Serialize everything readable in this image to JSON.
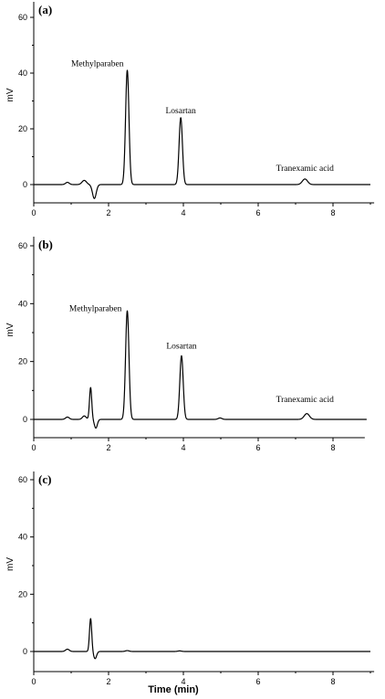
{
  "chart_data": [
    {
      "type": "line",
      "panel_label": "(a)",
      "ylabel": "mV",
      "xlabel": "",
      "xlim": [
        0,
        9
      ],
      "ylim": [
        -5,
        62
      ],
      "x_ticks": [
        "0",
        "2",
        "4",
        "6",
        "8"
      ],
      "y_ticks": [
        "0",
        "20",
        "40",
        "60"
      ],
      "baseline_features": [
        {
          "x": 0.9,
          "y": 0.8,
          "w": 0.05
        },
        {
          "x": 1.35,
          "y": 1.5,
          "w": 0.06
        },
        {
          "x": 1.62,
          "y": -5.0,
          "w": 0.05
        }
      ],
      "peaks": [
        {
          "name": "Methylparaben",
          "rt": 2.5,
          "height": 41,
          "width": 0.045
        },
        {
          "name": "Losartan",
          "rt": 3.93,
          "height": 24,
          "width": 0.045
        },
        {
          "name": "Tranexamic acid",
          "rt": 7.25,
          "height": 2,
          "width": 0.07
        }
      ],
      "annotations": [
        {
          "text": "Methylparaben",
          "x": 1.7,
          "y": 42.5
        },
        {
          "text": "Losartan",
          "x": 3.93,
          "y": 25.5
        },
        {
          "text": "Tranexamic acid",
          "x": 7.25,
          "y": 5
        }
      ]
    },
    {
      "type": "line",
      "panel_label": "(b)",
      "ylabel": "mV",
      "xlabel": "",
      "xlim": [
        0,
        8.9
      ],
      "ylim": [
        -7,
        62
      ],
      "x_ticks": [
        "0",
        "2",
        "4",
        "6",
        "8"
      ],
      "y_ticks": [
        "0",
        "20",
        "40",
        "60"
      ],
      "baseline_features": [
        {
          "x": 0.9,
          "y": 0.8,
          "w": 0.05
        },
        {
          "x": 1.35,
          "y": 1.2,
          "w": 0.05
        },
        {
          "x": 1.52,
          "y": 11,
          "w": 0.03
        },
        {
          "x": 1.66,
          "y": -3,
          "w": 0.04
        }
      ],
      "peaks": [
        {
          "name": "Methylparaben",
          "rt": 2.5,
          "height": 37.5,
          "width": 0.045
        },
        {
          "name": "Losartan",
          "rt": 3.95,
          "height": 22,
          "width": 0.045
        },
        {
          "name": "",
          "rt": 4.98,
          "height": 0.5,
          "width": 0.05
        },
        {
          "name": "Tranexamic acid",
          "rt": 7.3,
          "height": 2,
          "width": 0.07
        }
      ],
      "annotations": [
        {
          "text": "Methylparaben",
          "x": 1.65,
          "y": 37.5
        },
        {
          "text": "Losartan",
          "x": 3.95,
          "y": 24.5
        },
        {
          "text": "Tranexamic acid",
          "x": 7.25,
          "y": 6
        }
      ]
    },
    {
      "type": "line",
      "panel_label": "(c)",
      "ylabel": "mV",
      "xlabel": "Time (min)",
      "xlim": [
        0,
        9
      ],
      "ylim": [
        -7,
        62
      ],
      "x_ticks": [
        "0",
        "2",
        "4",
        "6",
        "8"
      ],
      "y_ticks": [
        "0",
        "20",
        "40",
        "60"
      ],
      "baseline_features": [
        {
          "x": 0.9,
          "y": 0.8,
          "w": 0.05
        },
        {
          "x": 1.52,
          "y": 11.5,
          "w": 0.03
        },
        {
          "x": 1.64,
          "y": -2.5,
          "w": 0.04
        },
        {
          "x": 2.5,
          "y": 0.3,
          "w": 0.05
        },
        {
          "x": 3.9,
          "y": 0.2,
          "w": 0.05
        }
      ],
      "peaks": [],
      "annotations": []
    }
  ]
}
